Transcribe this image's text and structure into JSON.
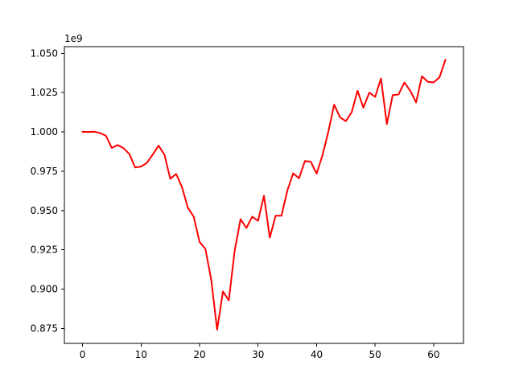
{
  "chart_data": {
    "type": "line",
    "title": "",
    "xlabel": "",
    "ylabel": "",
    "offset_label": "1e9",
    "xlim": [
      -3.1,
      65.1
    ],
    "ylim": [
      0.86548,
      1.05428
    ],
    "grid": false,
    "x_ticks": [
      0,
      10,
      20,
      30,
      40,
      50,
      60
    ],
    "x_tick_labels": [
      "0",
      "10",
      "20",
      "30",
      "40",
      "50",
      "60"
    ],
    "y_ticks": [
      0.875,
      0.9,
      0.925,
      0.95,
      0.975,
      1.0,
      1.025,
      1.05
    ],
    "y_tick_labels": [
      "0.875",
      "0.900",
      "0.925",
      "0.950",
      "0.975",
      "1.000",
      "1.025",
      "1.050"
    ],
    "series": [
      {
        "color": "#ff0000",
        "x": [
          0,
          1,
          2,
          3,
          4,
          5,
          6,
          7,
          8,
          9,
          10,
          11,
          12,
          13,
          14,
          15,
          16,
          17,
          18,
          19,
          20,
          21,
          22,
          23,
          24,
          25,
          26,
          27,
          28,
          29,
          30,
          31,
          32,
          33,
          34,
          35,
          36,
          37,
          38,
          39,
          40,
          41,
          42,
          43,
          44,
          45,
          46,
          47,
          48,
          49,
          50,
          51,
          52,
          53,
          54,
          55,
          56,
          57,
          58,
          59,
          60,
          61,
          62
        ],
        "values": [
          1.0001,
          1.0,
          1.0002,
          0.9993,
          0.9976,
          0.9898,
          0.9917,
          0.9897,
          0.986,
          0.9774,
          0.978,
          0.9803,
          0.9856,
          0.9913,
          0.9855,
          0.9702,
          0.9733,
          0.9649,
          0.9518,
          0.9461,
          0.93,
          0.9256,
          0.9058,
          0.8742,
          0.8985,
          0.8928,
          0.9245,
          0.9445,
          0.9389,
          0.9461,
          0.9435,
          0.9594,
          0.9328,
          0.9467,
          0.9467,
          0.9627,
          0.9737,
          0.9705,
          0.9815,
          0.9811,
          0.9735,
          0.9851,
          1.0001,
          1.0174,
          1.0093,
          1.0069,
          1.0126,
          1.0262,
          1.0154,
          1.025,
          1.0223,
          1.034,
          1.005,
          1.0234,
          1.0239,
          1.0315,
          1.0262,
          1.0188,
          1.0354,
          1.0319,
          1.0315,
          1.0348,
          1.0458
        ]
      }
    ]
  }
}
